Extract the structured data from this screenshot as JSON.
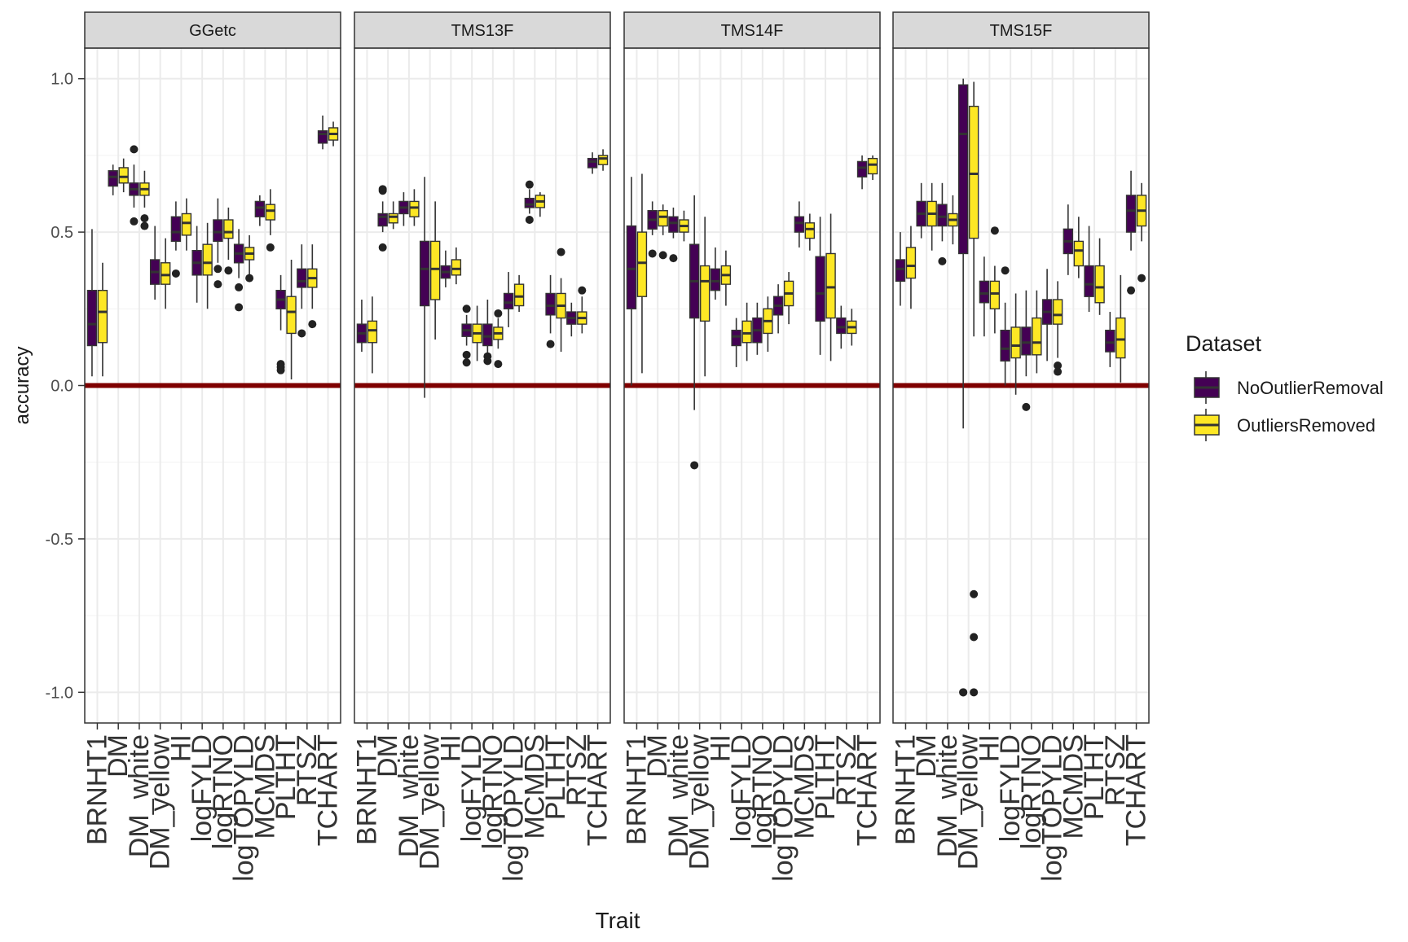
{
  "chart_data": {
    "type": "boxplot",
    "facet_variable": "dataset",
    "facets": [
      "GGetc",
      "TMS13F",
      "TMS14F",
      "TMS15F"
    ],
    "xlabel": "Trait",
    "ylabel": "accuracy",
    "ylim": [
      -1.1,
      1.1
    ],
    "y_ticks": [
      -1.0,
      -0.5,
      0.0,
      0.5,
      1.0
    ],
    "y_tick_labels": [
      "-1.0",
      "-0.5",
      "0.0",
      "0.5",
      "1.0"
    ],
    "categories": [
      "BRNHT1",
      "DM",
      "DM_white",
      "DM_yellow",
      "HI",
      "logFYLD",
      "logRTNO",
      "logTOPYLD",
      "MCMDS",
      "PLTHT",
      "RTSZ",
      "TCHART"
    ],
    "reference_line": {
      "y": 0.0,
      "color": "#7f0000"
    },
    "grid": true,
    "legend": {
      "title": "Dataset",
      "position": "right",
      "entries": [
        {
          "name": "NoOutlierRemoval",
          "color": "#440154"
        },
        {
          "name": "OutliersRemoved",
          "color": "#FDE725"
        }
      ]
    },
    "series_order": [
      "NoOutlierRemoval",
      "OutliersRemoved"
    ],
    "boxes": {
      "GGetc": {
        "BRNHT1": [
          [
            0.03,
            0.13,
            0.2,
            0.31,
            0.51,
            []
          ],
          [
            0.03,
            0.14,
            0.24,
            0.31,
            0.4,
            []
          ]
        ],
        "DM": [
          [
            0.62,
            0.65,
            0.68,
            0.7,
            0.72,
            []
          ],
          [
            0.63,
            0.66,
            0.68,
            0.71,
            0.74,
            []
          ]
        ],
        "DM_white": [
          [
            0.58,
            0.62,
            0.64,
            0.66,
            0.72,
            [
              0.77,
              0.535
            ]
          ],
          [
            0.58,
            0.62,
            0.64,
            0.66,
            0.7,
            [
              0.545,
              0.52
            ]
          ]
        ],
        "DM_yellow": [
          [
            0.28,
            0.33,
            0.37,
            0.41,
            0.52,
            []
          ],
          [
            0.25,
            0.33,
            0.36,
            0.4,
            0.48,
            []
          ]
        ],
        "HI": [
          [
            0.44,
            0.47,
            0.5,
            0.55,
            0.6,
            [
              0.365
            ]
          ],
          [
            0.44,
            0.49,
            0.53,
            0.56,
            0.61,
            []
          ]
        ],
        "logFYLD": [
          [
            0.27,
            0.36,
            0.4,
            0.44,
            0.52,
            []
          ],
          [
            0.25,
            0.36,
            0.4,
            0.46,
            0.53,
            []
          ]
        ],
        "logRTNO": [
          [
            0.4,
            0.47,
            0.5,
            0.54,
            0.61,
            [
              0.38,
              0.33
            ]
          ],
          [
            0.41,
            0.48,
            0.5,
            0.54,
            0.58,
            [
              0.375
            ]
          ]
        ],
        "logTOPYLD": [
          [
            0.35,
            0.4,
            0.43,
            0.46,
            0.51,
            [
              0.32,
              0.255
            ]
          ],
          [
            0.36,
            0.41,
            0.43,
            0.45,
            0.49,
            [
              0.35
            ]
          ]
        ],
        "MCMDS": [
          [
            0.52,
            0.55,
            0.58,
            0.6,
            0.62,
            []
          ],
          [
            0.49,
            0.54,
            0.57,
            0.59,
            0.64,
            [
              0.45
            ]
          ]
        ],
        "PLTHT": [
          [
            0.18,
            0.25,
            0.28,
            0.31,
            0.36,
            [
              0.07,
              0.06,
              0.05
            ]
          ],
          [
            0.02,
            0.17,
            0.24,
            0.29,
            0.41,
            []
          ]
        ],
        "RTSZ": [
          [
            0.25,
            0.32,
            0.34,
            0.38,
            0.46,
            [
              0.17
            ]
          ],
          [
            0.25,
            0.32,
            0.35,
            0.38,
            0.46,
            [
              0.2
            ]
          ]
        ],
        "TCHART": [
          [
            0.77,
            0.79,
            0.82,
            0.83,
            0.88,
            []
          ],
          [
            0.78,
            0.8,
            0.82,
            0.84,
            0.86,
            []
          ]
        ]
      },
      "TMS13F": {
        "BRNHT1": [
          [
            0.11,
            0.14,
            0.17,
            0.2,
            0.28,
            []
          ],
          [
            0.04,
            0.14,
            0.18,
            0.21,
            0.29,
            []
          ]
        ],
        "DM": [
          [
            0.5,
            0.52,
            0.55,
            0.56,
            0.6,
            [
              0.64,
              0.635,
              0.45
            ]
          ],
          [
            0.51,
            0.53,
            0.55,
            0.56,
            0.6,
            []
          ]
        ],
        "DM_white": [
          [
            0.52,
            0.56,
            0.58,
            0.6,
            0.63,
            []
          ],
          [
            0.52,
            0.55,
            0.58,
            0.6,
            0.64,
            []
          ]
        ],
        "DM_yellow": [
          [
            -0.04,
            0.26,
            0.38,
            0.47,
            0.68,
            []
          ],
          [
            0.15,
            0.28,
            0.38,
            0.47,
            0.6,
            []
          ]
        ],
        "HI": [
          [
            0.32,
            0.35,
            0.37,
            0.39,
            0.44,
            []
          ],
          [
            0.33,
            0.36,
            0.38,
            0.41,
            0.45,
            []
          ]
        ],
        "logFYLD": [
          [
            0.13,
            0.16,
            0.18,
            0.2,
            0.23,
            [
              0.25,
              0.1,
              0.075
            ]
          ],
          [
            0.08,
            0.14,
            0.17,
            0.2,
            0.26,
            []
          ]
        ],
        "logRTNO": [
          [
            0.1,
            0.13,
            0.16,
            0.2,
            0.28,
            [
              0.095,
              0.08
            ]
          ],
          [
            0.12,
            0.15,
            0.17,
            0.19,
            0.22,
            [
              0.235,
              0.07
            ]
          ]
        ],
        "logTOPYLD": [
          [
            0.19,
            0.25,
            0.27,
            0.3,
            0.37,
            []
          ],
          [
            0.24,
            0.26,
            0.29,
            0.33,
            0.36,
            []
          ]
        ],
        "MCMDS": [
          [
            0.56,
            0.58,
            0.59,
            0.61,
            0.64,
            [
              0.655,
              0.54
            ]
          ],
          [
            0.55,
            0.58,
            0.6,
            0.62,
            0.63,
            []
          ]
        ],
        "PLTHT": [
          [
            0.17,
            0.23,
            0.26,
            0.3,
            0.36,
            [
              0.135
            ]
          ],
          [
            0.11,
            0.22,
            0.26,
            0.3,
            0.35,
            [
              0.435
            ]
          ]
        ],
        "RTSZ": [
          [
            0.16,
            0.2,
            0.22,
            0.24,
            0.27,
            []
          ],
          [
            0.17,
            0.2,
            0.22,
            0.24,
            0.29,
            [
              0.31
            ]
          ]
        ],
        "TCHART": [
          [
            0.69,
            0.71,
            0.73,
            0.74,
            0.76,
            []
          ],
          [
            0.7,
            0.72,
            0.74,
            0.75,
            0.77,
            []
          ]
        ]
      },
      "TMS14F": {
        "BRNHT1": [
          [
            0.0,
            0.25,
            0.38,
            0.52,
            0.68,
            []
          ],
          [
            0.04,
            0.29,
            0.4,
            0.5,
            0.69,
            []
          ]
        ],
        "DM": [
          [
            0.49,
            0.51,
            0.54,
            0.57,
            0.6,
            [
              0.43
            ]
          ],
          [
            0.49,
            0.52,
            0.55,
            0.57,
            0.59,
            [
              0.425
            ]
          ]
        ],
        "DM_white": [
          [
            0.48,
            0.5,
            0.53,
            0.55,
            0.58,
            [
              0.415
            ]
          ],
          [
            0.47,
            0.5,
            0.52,
            0.54,
            0.57,
            []
          ]
        ],
        "DM_yellow": [
          [
            -0.08,
            0.22,
            0.34,
            0.46,
            0.62,
            [
              -0.26
            ]
          ],
          [
            0.03,
            0.21,
            0.34,
            0.39,
            0.55,
            []
          ]
        ],
        "HI": [
          [
            0.28,
            0.31,
            0.34,
            0.38,
            0.45,
            []
          ],
          [
            0.26,
            0.33,
            0.36,
            0.39,
            0.44,
            []
          ]
        ],
        "logFYLD": [
          [
            0.06,
            0.13,
            0.16,
            0.18,
            0.22,
            []
          ],
          [
            0.08,
            0.14,
            0.17,
            0.21,
            0.27,
            []
          ]
        ],
        "logRTNO": [
          [
            0.1,
            0.14,
            0.18,
            0.22,
            0.27,
            []
          ],
          [
            0.11,
            0.17,
            0.21,
            0.25,
            0.29,
            []
          ]
        ],
        "logTOPYLD": [
          [
            0.17,
            0.23,
            0.26,
            0.29,
            0.33,
            []
          ],
          [
            0.2,
            0.26,
            0.3,
            0.34,
            0.37,
            []
          ]
        ],
        "MCMDS": [
          [
            0.45,
            0.5,
            0.53,
            0.55,
            0.6,
            []
          ],
          [
            0.44,
            0.48,
            0.51,
            0.53,
            0.56,
            []
          ]
        ],
        "PLTHT": [
          [
            0.1,
            0.21,
            0.3,
            0.42,
            0.55,
            []
          ],
          [
            0.08,
            0.22,
            0.32,
            0.43,
            0.56,
            []
          ]
        ],
        "RTSZ": [
          [
            0.12,
            0.17,
            0.19,
            0.22,
            0.26,
            []
          ],
          [
            0.13,
            0.17,
            0.19,
            0.21,
            0.25,
            []
          ]
        ],
        "TCHART": [
          [
            0.64,
            0.68,
            0.71,
            0.73,
            0.75,
            []
          ],
          [
            0.67,
            0.69,
            0.72,
            0.74,
            0.75,
            []
          ]
        ]
      },
      "TMS15F": {
        "BRNHT1": [
          [
            0.26,
            0.34,
            0.38,
            0.41,
            0.5,
            []
          ],
          [
            0.25,
            0.35,
            0.39,
            0.45,
            0.52,
            []
          ]
        ],
        "DM": [
          [
            0.48,
            0.52,
            0.56,
            0.6,
            0.66,
            []
          ],
          [
            0.44,
            0.52,
            0.56,
            0.6,
            0.66,
            []
          ]
        ],
        "DM_white": [
          [
            0.47,
            0.52,
            0.55,
            0.59,
            0.66,
            [
              0.405
            ]
          ],
          [
            0.46,
            0.52,
            0.54,
            0.56,
            0.62,
            []
          ]
        ],
        "DM_yellow": [
          [
            -0.14,
            0.43,
            0.82,
            0.98,
            1.0,
            [
              -1.0,
              -1.0
            ]
          ],
          [
            0.16,
            0.48,
            0.69,
            0.91,
            0.99,
            [
              -0.68,
              -0.82,
              -1.0
            ]
          ]
        ],
        "HI": [
          [
            0.16,
            0.27,
            0.3,
            0.34,
            0.42,
            []
          ],
          [
            0.17,
            0.25,
            0.3,
            0.34,
            0.39,
            [
              0.505
            ]
          ]
        ],
        "logFYLD": [
          [
            0.0,
            0.08,
            0.12,
            0.18,
            0.27,
            [
              0.375
            ]
          ],
          [
            -0.03,
            0.09,
            0.13,
            0.19,
            0.3,
            []
          ]
        ],
        "logRTNO": [
          [
            0.03,
            0.1,
            0.14,
            0.19,
            0.31,
            [
              -0.07
            ]
          ],
          [
            0.04,
            0.1,
            0.14,
            0.22,
            0.31,
            []
          ]
        ],
        "logTOPYLD": [
          [
            0.08,
            0.2,
            0.24,
            0.28,
            0.38,
            []
          ],
          [
            0.09,
            0.2,
            0.23,
            0.28,
            0.34,
            [
              0.065,
              0.045
            ]
          ]
        ],
        "MCMDS": [
          [
            0.36,
            0.43,
            0.47,
            0.51,
            0.59,
            []
          ],
          [
            0.35,
            0.39,
            0.44,
            0.47,
            0.55,
            []
          ]
        ],
        "PLTHT": [
          [
            0.24,
            0.29,
            0.33,
            0.39,
            0.52,
            []
          ],
          [
            0.23,
            0.27,
            0.32,
            0.39,
            0.48,
            []
          ]
        ],
        "RTSZ": [
          [
            0.06,
            0.11,
            0.14,
            0.18,
            0.24,
            []
          ],
          [
            0.01,
            0.09,
            0.15,
            0.22,
            0.36,
            []
          ]
        ],
        "TCHART": [
          [
            0.44,
            0.5,
            0.57,
            0.62,
            0.7,
            [
              0.31
            ]
          ],
          [
            0.47,
            0.52,
            0.57,
            0.62,
            0.66,
            [
              0.35
            ]
          ]
        ]
      }
    }
  }
}
